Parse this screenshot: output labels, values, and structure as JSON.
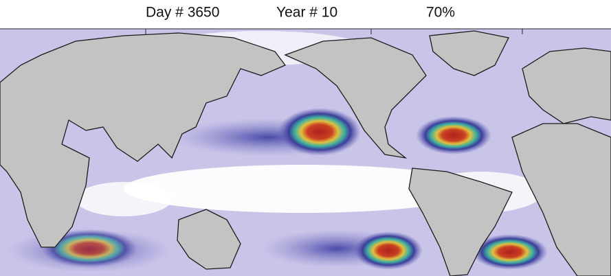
{
  "header": {
    "day": "Day # 3650",
    "year": "Year # 10",
    "percent": "70%"
  }
}
